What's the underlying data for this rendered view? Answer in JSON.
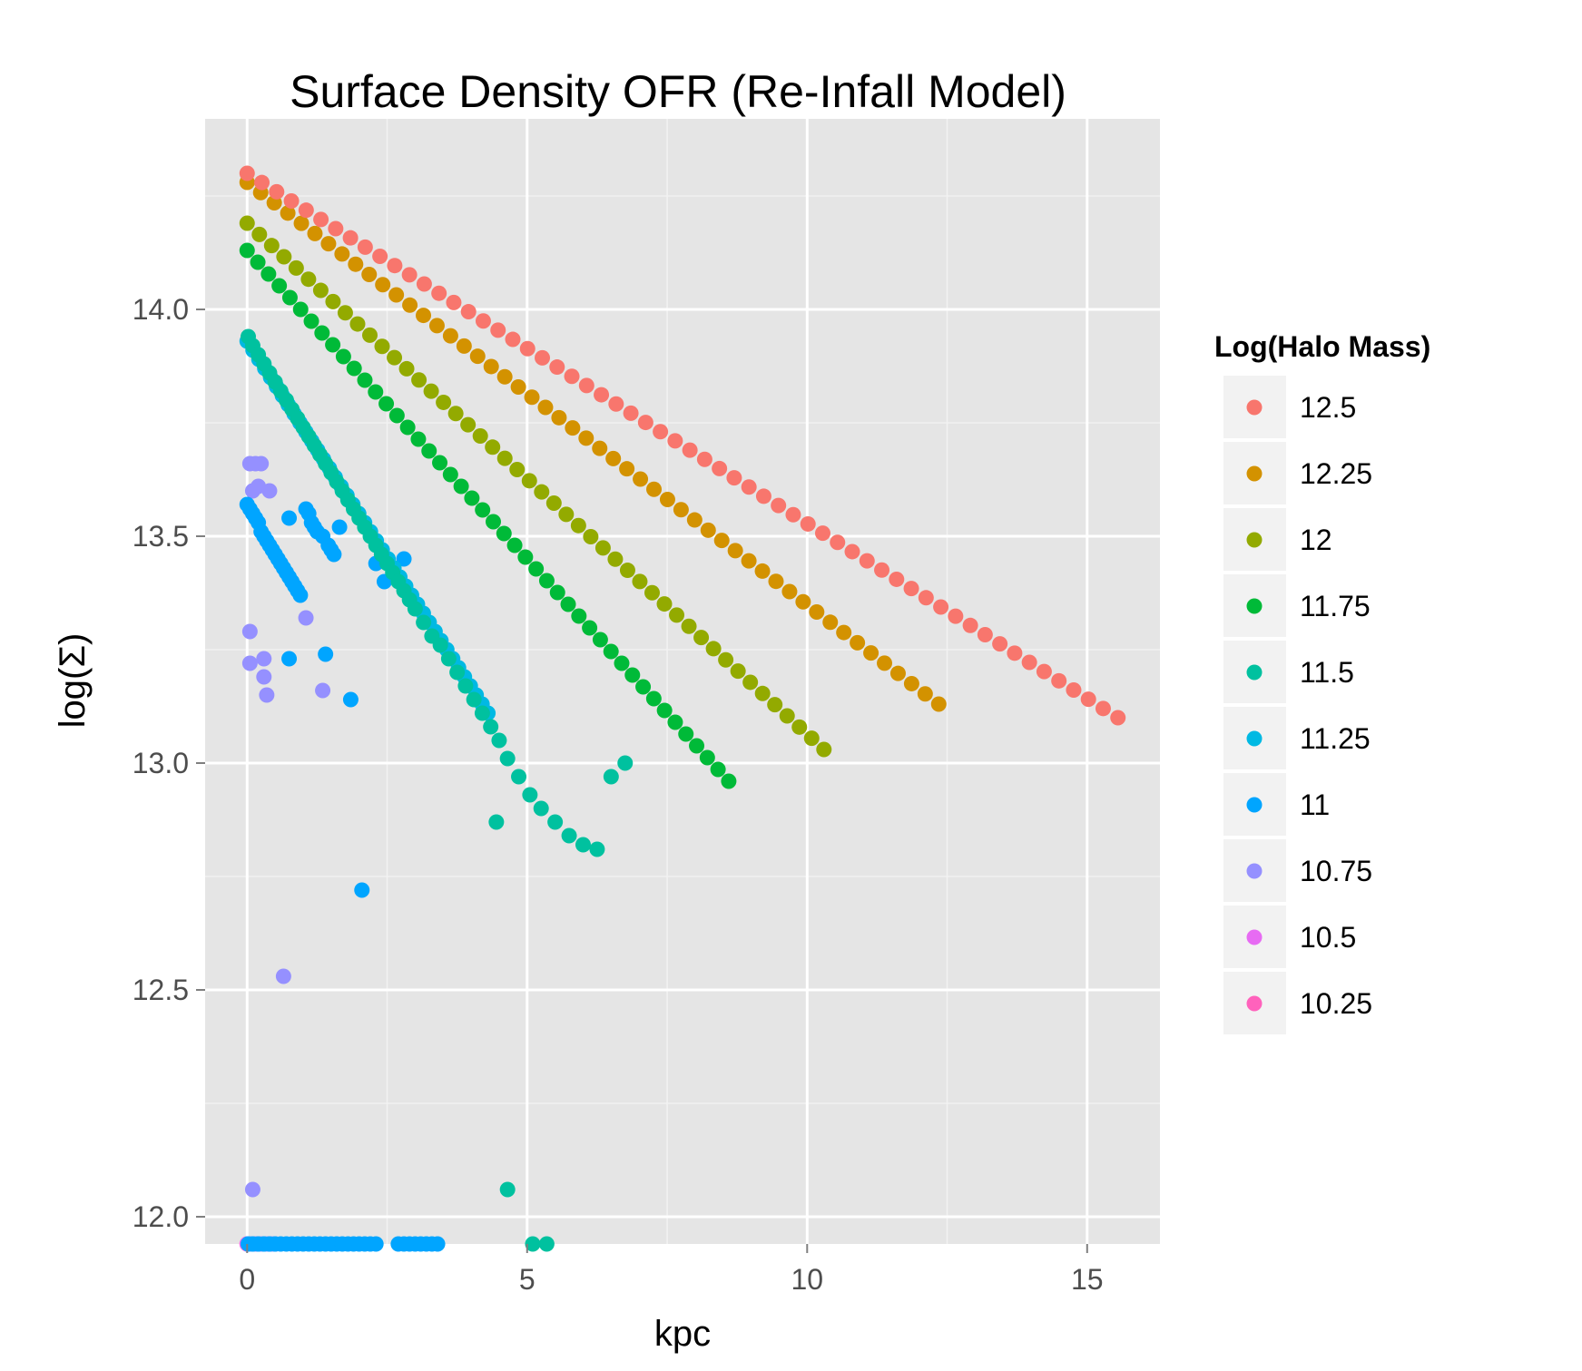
{
  "chart_data": {
    "type": "scatter",
    "title": "Surface Density OFR (Re-Infall Model)",
    "xlabel": "kpc",
    "ylabel": "log(Σ)",
    "xlim": [
      -0.75,
      16.3
    ],
    "ylim": [
      11.94,
      14.42
    ],
    "x_ticks": [
      0,
      5,
      10,
      15
    ],
    "y_ticks": [
      12.0,
      12.5,
      13.0,
      13.5,
      14.0
    ],
    "x_tick_labels": [
      "0",
      "5",
      "10",
      "15"
    ],
    "y_tick_labels": [
      "12.0",
      "12.5",
      "13.0",
      "13.5",
      "14.0"
    ],
    "grid": true,
    "legend_position": "right",
    "legend_title": "Log(Halo Mass)",
    "series": [
      {
        "name": "12.5",
        "color": "#F8766D",
        "kind": "line",
        "x0": 0.0,
        "x1": 15.55,
        "y0": 14.3,
        "y1": 13.1,
        "n": 60
      },
      {
        "name": "12.25",
        "color": "#D39200",
        "kind": "line",
        "x0": 0.0,
        "x1": 12.35,
        "y0": 14.28,
        "y1": 13.13,
        "n": 52
      },
      {
        "name": "12",
        "color": "#93AA00",
        "kind": "line",
        "x0": 0.0,
        "x1": 10.3,
        "y0": 14.19,
        "y1": 13.03,
        "n": 48
      },
      {
        "name": "11.75",
        "color": "#00BA38",
        "kind": "line",
        "x0": 0.0,
        "x1": 8.6,
        "y0": 14.13,
        "y1": 12.96,
        "n": 46
      },
      {
        "name": "11.5",
        "color": "#00C19F",
        "kind": "points",
        "x": [
          0.02,
          0.1,
          0.2,
          0.3,
          0.4,
          0.5,
          0.6,
          0.7,
          0.8,
          0.9,
          1.0,
          1.1,
          1.2,
          1.3,
          1.4,
          1.5,
          1.6,
          1.7,
          1.8,
          1.9,
          2.0,
          2.1,
          2.2,
          2.3,
          2.4,
          2.5,
          2.6,
          2.7,
          2.8,
          2.9,
          3.0,
          3.15,
          3.3,
          3.45,
          3.6,
          3.75,
          3.9,
          4.05,
          4.2,
          4.35,
          4.5,
          4.65,
          4.85,
          5.05,
          5.25,
          5.5,
          5.75,
          6.0,
          6.25,
          6.5,
          6.75,
          4.45,
          4.65,
          5.1,
          5.35
        ],
        "y": [
          13.94,
          13.92,
          13.9,
          13.88,
          13.86,
          13.84,
          13.82,
          13.8,
          13.78,
          13.76,
          13.74,
          13.72,
          13.7,
          13.68,
          13.66,
          13.64,
          13.62,
          13.6,
          13.58,
          13.56,
          13.54,
          13.52,
          13.5,
          13.48,
          13.46,
          13.44,
          13.42,
          13.4,
          13.38,
          13.36,
          13.34,
          13.31,
          13.28,
          13.26,
          13.23,
          13.2,
          13.17,
          13.14,
          13.11,
          13.08,
          13.05,
          13.01,
          12.97,
          12.93,
          12.9,
          12.87,
          12.84,
          12.82,
          12.81,
          12.97,
          13.0,
          12.87,
          12.06,
          11.94,
          11.94
        ]
      },
      {
        "name": "11.25",
        "color": "#00B9E3",
        "kind": "line",
        "x0": 0.0,
        "x1": 4.3,
        "y0": 13.93,
        "y1": 13.11,
        "n": 42
      },
      {
        "name": "11",
        "color": "#00A5FF",
        "kind": "points",
        "x": [
          0.0,
          0.05,
          0.1,
          0.15,
          0.2,
          0.25,
          0.3,
          0.35,
          0.4,
          0.45,
          0.5,
          0.55,
          0.6,
          0.65,
          0.7,
          0.75,
          0.8,
          0.85,
          0.9,
          0.95,
          0.75,
          1.05,
          1.1,
          1.15,
          1.2,
          1.25,
          1.35,
          1.45,
          1.5,
          1.55,
          1.65,
          1.4,
          1.85,
          2.3,
          2.45,
          2.8,
          0.75,
          2.05,
          0.02,
          0.1,
          0.2,
          0.3,
          0.4,
          0.5,
          0.6,
          0.7,
          0.8,
          0.9,
          1.0,
          1.1,
          1.2,
          1.3,
          1.4,
          1.5,
          1.6,
          1.7,
          1.8,
          1.9,
          2.0,
          2.1,
          2.2,
          2.3,
          2.7,
          2.8,
          2.9,
          3.0,
          3.1,
          3.2,
          3.3,
          3.4
        ],
        "y": [
          13.57,
          13.56,
          13.55,
          13.54,
          13.53,
          13.51,
          13.5,
          13.49,
          13.48,
          13.47,
          13.46,
          13.45,
          13.44,
          13.43,
          13.42,
          13.41,
          13.4,
          13.39,
          13.38,
          13.37,
          13.54,
          13.56,
          13.55,
          13.53,
          13.52,
          13.51,
          13.5,
          13.48,
          13.47,
          13.46,
          13.52,
          13.24,
          13.14,
          13.44,
          13.4,
          13.45,
          13.23,
          12.72,
          11.94,
          11.94,
          11.94,
          11.94,
          11.94,
          11.94,
          11.94,
          11.94,
          11.94,
          11.94,
          11.94,
          11.94,
          11.94,
          11.94,
          11.94,
          11.94,
          11.94,
          11.94,
          11.94,
          11.94,
          11.94,
          11.94,
          11.94,
          11.94,
          11.94,
          11.94,
          11.94,
          11.94,
          11.94,
          11.94,
          11.94,
          11.94
        ]
      },
      {
        "name": "10.75",
        "color": "#9590FF",
        "kind": "points",
        "x": [
          0.05,
          0.15,
          0.25,
          0.1,
          0.2,
          0.4,
          1.05,
          0.05,
          0.05,
          0.3,
          0.3,
          0.35,
          1.35,
          0.65,
          0.1,
          0.02,
          0.08,
          0.14,
          0.2,
          0.26,
          0.32,
          0.38,
          0.44,
          0.5
        ],
        "y": [
          13.66,
          13.66,
          13.66,
          13.6,
          13.61,
          13.6,
          13.32,
          13.29,
          13.22,
          13.23,
          13.19,
          13.15,
          13.16,
          12.53,
          12.06,
          11.94,
          11.94,
          11.94,
          11.94,
          11.94,
          11.94,
          11.94,
          11.94,
          11.94
        ]
      },
      {
        "name": "10.5",
        "color": "#E76BF3",
        "kind": "points",
        "x": [
          0.0,
          0.1,
          0.2,
          0.3,
          0.4,
          0.5
        ],
        "y": [
          11.94,
          11.94,
          11.94,
          11.94,
          11.94,
          11.94
        ]
      },
      {
        "name": "10.25",
        "color": "#FF62BC",
        "kind": "points",
        "x": [
          0.0,
          0.15,
          0.3
        ],
        "y": [
          11.94,
          11.94,
          11.94
        ]
      }
    ]
  }
}
